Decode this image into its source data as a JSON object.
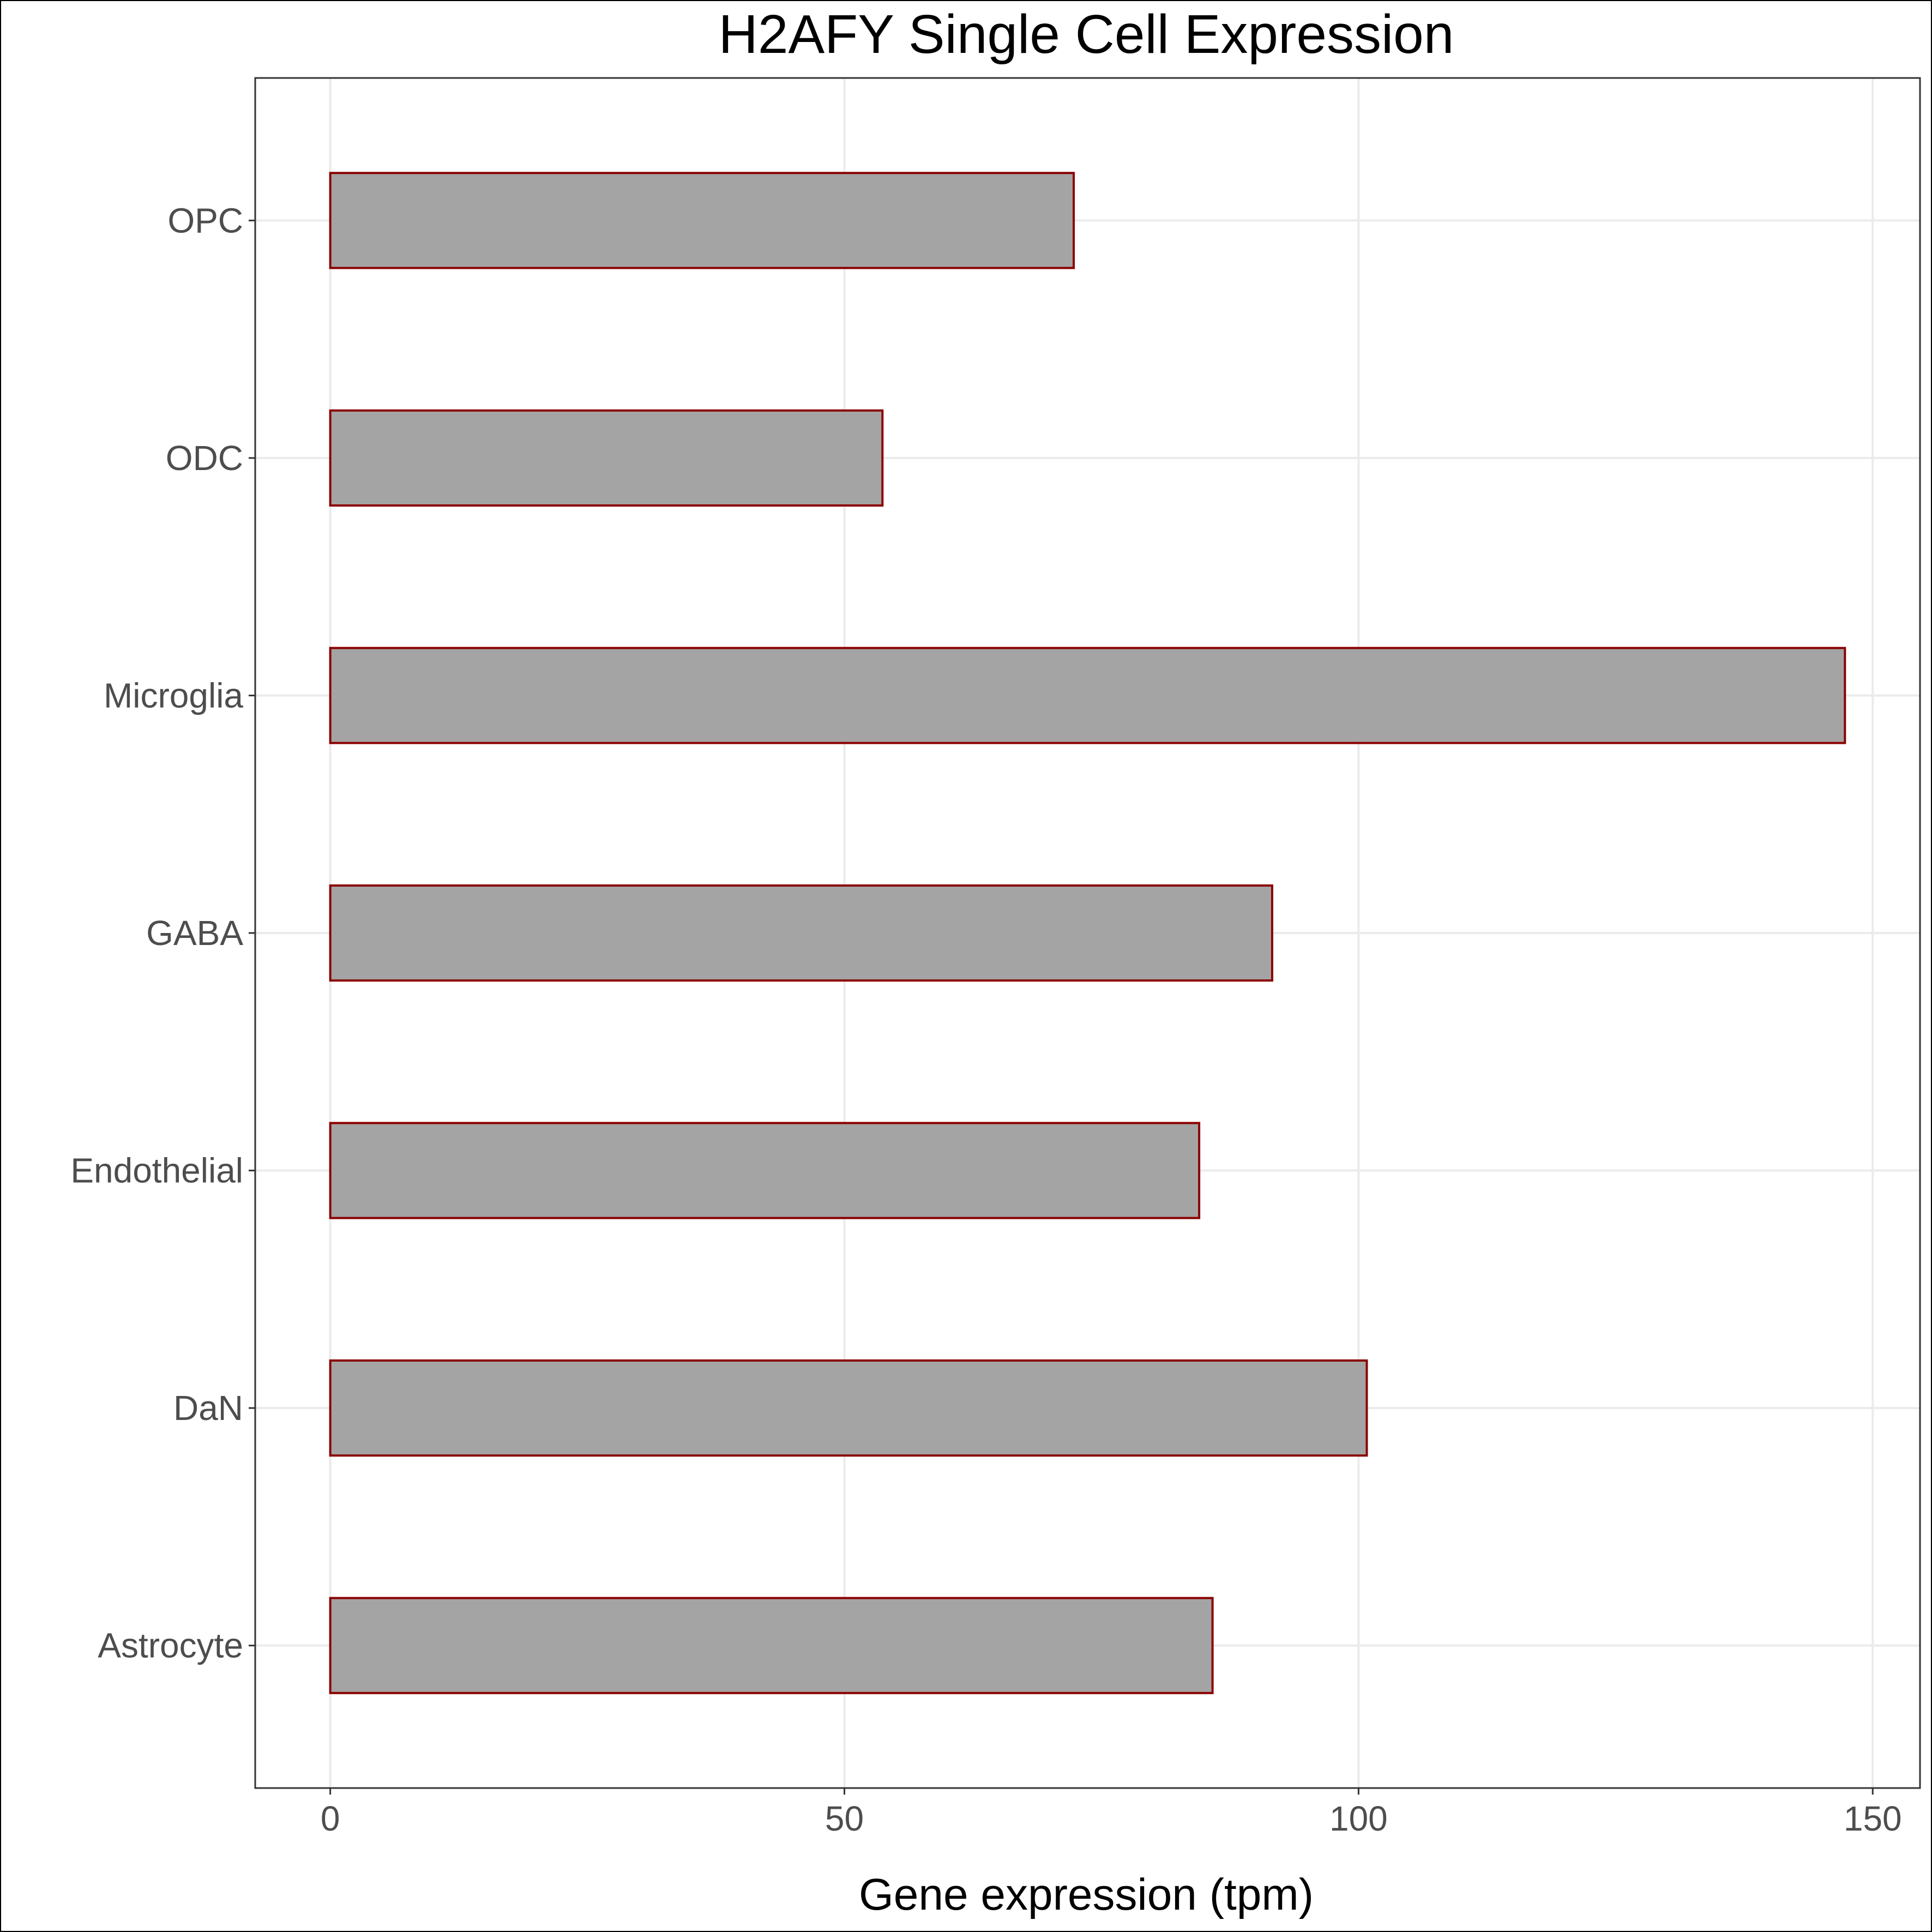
{
  "chart_data": {
    "type": "bar",
    "orientation": "horizontal",
    "title": "H2AFY Single Cell Expression",
    "xlabel": "Gene expression (tpm)",
    "ylabel": "",
    "categories": [
      "Astrocyte",
      "DaN",
      "Endothelial",
      "GABA",
      "Microglia",
      "ODC",
      "OPC"
    ],
    "values": [
      85.8,
      100.8,
      84.5,
      91.6,
      147.3,
      53.7,
      72.3
    ],
    "xlim": [
      -7.3,
      154.6
    ],
    "xticks": [
      0,
      50,
      100,
      150
    ],
    "grid": true,
    "legend": "none",
    "colors": {
      "bar_fill": "#a4a4a4",
      "bar_stroke": "#8b0000",
      "grid": "#ebebeb",
      "panel_border": "#333333",
      "tick_label": "#4d4d4d"
    }
  }
}
